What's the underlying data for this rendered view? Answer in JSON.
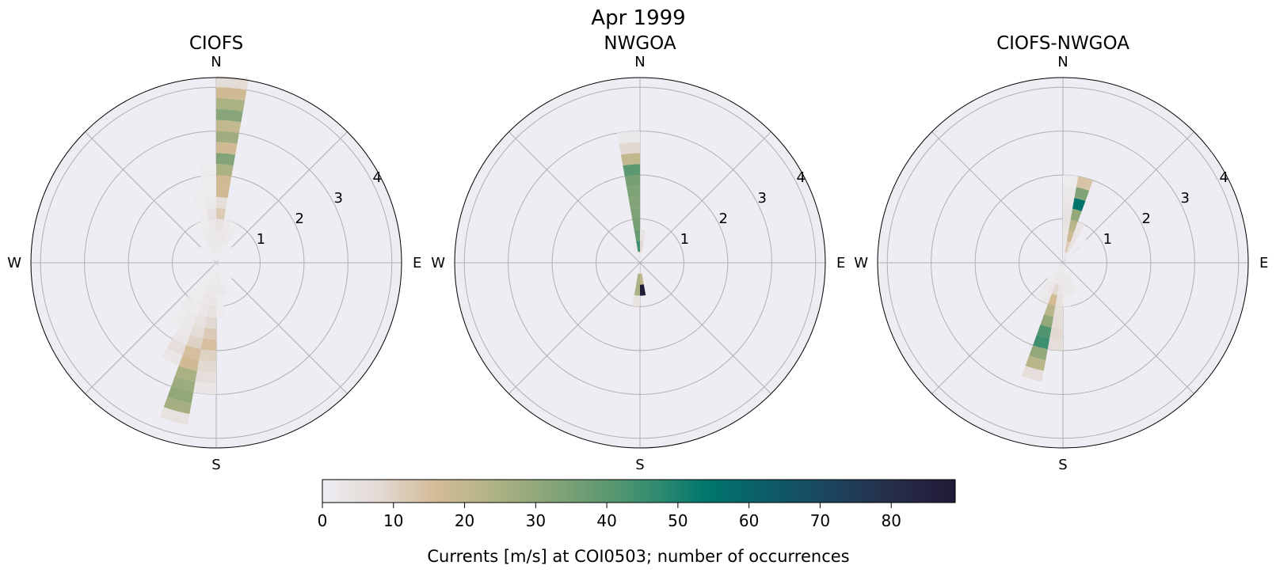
{
  "chart_data": [
    {
      "type": "polar-bar",
      "title": "CIOFS",
      "direction_labels": [
        "N",
        "E",
        "S",
        "W"
      ],
      "radial_ticks": [
        1,
        2,
        3,
        4
      ],
      "rlim": [
        0,
        4.22
      ],
      "speed_bin_width": 0.25,
      "direction_bin_width": 10,
      "bars": [
        {
          "dir": 5,
          "counts": [
            1,
            2,
            3,
            5,
            12,
            6,
            17,
            17,
            25,
            33,
            17,
            27,
            20,
            32,
            25,
            17,
            7
          ]
        },
        {
          "dir": 15,
          "counts": [
            1,
            2,
            3,
            2,
            1
          ]
        },
        {
          "dir": 25,
          "counts": [
            1,
            1,
            2,
            1
          ]
        },
        {
          "dir": 45,
          "counts": [
            1,
            1
          ]
        },
        {
          "dir": 135,
          "counts": [
            1,
            1
          ]
        },
        {
          "dir": 165,
          "counts": [
            1,
            1,
            2
          ]
        },
        {
          "dir": 175,
          "counts": [
            1,
            2,
            2,
            1,
            1
          ]
        },
        {
          "dir": 185,
          "counts": [
            1,
            1,
            2,
            3,
            5,
            8,
            12,
            15,
            10,
            8,
            6,
            3
          ]
        },
        {
          "dir": 195,
          "counts": [
            1,
            1,
            2,
            3,
            3,
            5,
            7,
            10,
            15,
            17,
            25,
            28,
            30,
            26,
            5
          ]
        },
        {
          "dir": 205,
          "counts": [
            0,
            1,
            1,
            1,
            1,
            2,
            2,
            3,
            6,
            3
          ]
        },
        {
          "dir": 215,
          "counts": [
            1,
            1,
            1,
            1,
            2,
            1,
            1
          ]
        },
        {
          "dir": 235,
          "counts": [
            1,
            1
          ]
        },
        {
          "dir": 315,
          "counts": [
            1,
            1
          ]
        },
        {
          "dir": 335,
          "counts": [
            1,
            1,
            1,
            1
          ]
        },
        {
          "dir": 345,
          "counts": [
            1,
            2,
            2,
            1,
            1,
            1,
            1
          ]
        },
        {
          "dir": 355,
          "counts": [
            1,
            2,
            2,
            3,
            4,
            2,
            1,
            1,
            1
          ]
        }
      ]
    },
    {
      "type": "polar-bar",
      "title": "NWGOA",
      "direction_labels": [
        "N",
        "E",
        "S",
        "W"
      ],
      "radial_ticks": [
        1,
        2,
        3,
        4
      ],
      "rlim": [
        0,
        4.22
      ],
      "speed_bin_width": 0.25,
      "direction_bin_width": 10,
      "bars": [
        {
          "dir": 5,
          "counts": [
            3,
            8,
            4
          ]
        },
        {
          "dir": 345,
          "counts": [
            1,
            2
          ]
        },
        {
          "dir": 355,
          "counts": [
            3,
            45,
            38,
            35,
            34,
            33,
            34,
            35,
            40,
            20,
            8,
            2
          ]
        },
        {
          "dir": 175,
          "counts": [
            0,
            20,
            88
          ]
        },
        {
          "dir": 185,
          "counts": [
            2,
            25,
            25,
            5
          ]
        }
      ]
    },
    {
      "type": "polar-bar",
      "title": "CIOFS-NWGOA",
      "direction_labels": [
        "N",
        "E",
        "S",
        "W"
      ],
      "radial_ticks": [
        1,
        2,
        3,
        4
      ],
      "rlim": [
        0,
        4.22
      ],
      "speed_bin_width": 0.25,
      "direction_bin_width": 10,
      "bars": [
        {
          "dir": 5,
          "counts": [
            1,
            2,
            3,
            4,
            4,
            3,
            2,
            1
          ]
        },
        {
          "dir": 15,
          "counts": [
            3,
            12,
            18,
            22,
            30,
            55,
            33,
            14
          ]
        },
        {
          "dir": 25,
          "counts": [
            2,
            4,
            5,
            3
          ]
        },
        {
          "dir": 45,
          "counts": [
            1,
            2,
            1
          ]
        },
        {
          "dir": 105,
          "counts": [
            1,
            1
          ]
        },
        {
          "dir": 155,
          "counts": [
            1,
            2,
            1
          ]
        },
        {
          "dir": 165,
          "counts": [
            1,
            2,
            2
          ]
        },
        {
          "dir": 175,
          "counts": [
            1,
            2,
            2,
            1
          ]
        },
        {
          "dir": 185,
          "counts": [
            1,
            2,
            3,
            5,
            6,
            7,
            8,
            6
          ]
        },
        {
          "dir": 195,
          "counts": [
            2,
            3,
            8,
            16,
            22,
            30,
            42,
            45,
            30,
            22,
            6
          ]
        },
        {
          "dir": 205,
          "counts": [
            1,
            2,
            3,
            2
          ]
        },
        {
          "dir": 215,
          "counts": [
            1,
            1,
            2,
            1
          ]
        },
        {
          "dir": 225,
          "counts": [
            1,
            1
          ]
        },
        {
          "dir": 345,
          "counts": [
            1,
            1
          ]
        }
      ]
    }
  ],
  "figure_title": "Apr 1999",
  "colorbar": {
    "label": "Currents [m/s] at COI0503; number of occurrences",
    "ticks": [
      "0",
      "10",
      "20",
      "30",
      "40",
      "50",
      "60",
      "70",
      "80"
    ],
    "range": [
      0,
      89
    ],
    "colormap_stops": [
      {
        "v": 0,
        "c": "#eeedf2"
      },
      {
        "v": 8,
        "c": "#e2d9d3"
      },
      {
        "v": 16,
        "c": "#d3bb96"
      },
      {
        "v": 22,
        "c": "#b9b689"
      },
      {
        "v": 30,
        "c": "#92a87a"
      },
      {
        "v": 40,
        "c": "#5c9870"
      },
      {
        "v": 48,
        "c": "#2a8970"
      },
      {
        "v": 54,
        "c": "#00766d"
      },
      {
        "v": 62,
        "c": "#0c5e68"
      },
      {
        "v": 72,
        "c": "#1d445d"
      },
      {
        "v": 80,
        "c": "#262e4a"
      },
      {
        "v": 89,
        "c": "#211a36"
      }
    ]
  },
  "colors": {
    "axes_background": "#eeedf3",
    "grid": "#b0b0b0"
  }
}
